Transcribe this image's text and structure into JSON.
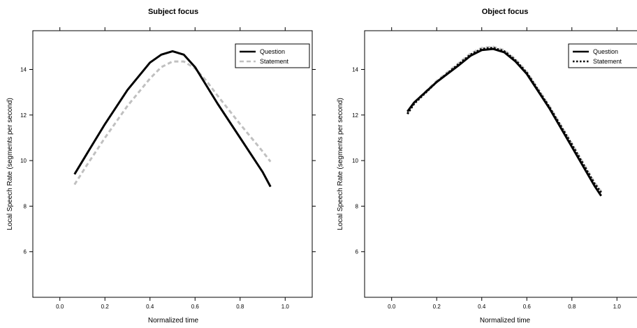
{
  "chart_data": [
    {
      "type": "line",
      "title": "Subject focus",
      "xlabel": "Normalized time",
      "ylabel": "Local Speech Rate (segments per second)",
      "xlim": [
        -0.12,
        1.12
      ],
      "ylim": [
        4.0,
        15.7
      ],
      "xticks": [
        0.0,
        0.2,
        0.4,
        0.6,
        0.8,
        1.0
      ],
      "xtick_labels": [
        "0.0",
        "0.2",
        "0.4",
        "0.6",
        "0.8",
        "1.0"
      ],
      "yticks": [
        6,
        8,
        10,
        12,
        14
      ],
      "ytick_labels": [
        "6",
        "8",
        "10",
        "12",
        "14"
      ],
      "legend_position": "top-right",
      "series": [
        {
          "name": "Question",
          "color": "#000000",
          "dash": "solid",
          "x": [
            0.065,
            0.12,
            0.2,
            0.3,
            0.4,
            0.45,
            0.5,
            0.55,
            0.6,
            0.65,
            0.7,
            0.8,
            0.9,
            0.935
          ],
          "y": [
            9.4,
            10.3,
            11.6,
            13.1,
            14.3,
            14.65,
            14.8,
            14.65,
            14.1,
            13.3,
            12.5,
            11.0,
            9.5,
            8.85
          ]
        },
        {
          "name": "Statement",
          "color": "#c0c0c0",
          "dash": "dashed",
          "x": [
            0.065,
            0.12,
            0.2,
            0.3,
            0.4,
            0.45,
            0.5,
            0.55,
            0.6,
            0.65,
            0.7,
            0.8,
            0.9,
            0.935
          ],
          "y": [
            8.95,
            9.8,
            11.0,
            12.4,
            13.6,
            14.1,
            14.35,
            14.35,
            14.05,
            13.5,
            12.85,
            11.6,
            10.4,
            9.95
          ]
        }
      ]
    },
    {
      "type": "line",
      "title": "Object focus",
      "xlabel": "Normalized time",
      "ylabel": "Local Speech Rate (segments per second)",
      "xlim": [
        -0.12,
        1.12
      ],
      "ylim": [
        4.0,
        15.7
      ],
      "xticks": [
        0.0,
        0.2,
        0.4,
        0.6,
        0.8,
        1.0
      ],
      "xtick_labels": [
        "0.0",
        "0.2",
        "0.4",
        "0.6",
        "0.8",
        "1.0"
      ],
      "yticks": [
        6,
        8,
        10,
        12,
        14
      ],
      "ytick_labels": [
        "6",
        "8",
        "10",
        "12",
        "14"
      ],
      "legend_position": "top-right",
      "series": [
        {
          "name": "Question",
          "color": "#000000",
          "dash": "solid",
          "x": [
            0.07,
            0.1,
            0.2,
            0.3,
            0.35,
            0.4,
            0.45,
            0.5,
            0.55,
            0.6,
            0.7,
            0.8,
            0.9,
            0.93
          ],
          "y": [
            12.15,
            12.55,
            13.45,
            14.2,
            14.6,
            14.85,
            14.9,
            14.75,
            14.35,
            13.8,
            12.3,
            10.6,
            8.9,
            8.45
          ]
        },
        {
          "name": "Statement",
          "color": "#000000",
          "dash": "dotted",
          "x": [
            0.07,
            0.1,
            0.2,
            0.3,
            0.35,
            0.4,
            0.45,
            0.5,
            0.55,
            0.6,
            0.7,
            0.8,
            0.9,
            0.93
          ],
          "y": [
            12.05,
            12.5,
            13.45,
            14.25,
            14.65,
            14.9,
            14.95,
            14.8,
            14.4,
            13.85,
            12.35,
            10.7,
            9.0,
            8.6
          ]
        },
        {
          "name": "",
          "color": "#c8c8c8",
          "dash": "dashed",
          "x": [
            0.07,
            0.1,
            0.2,
            0.3,
            0.35,
            0.4,
            0.45,
            0.5,
            0.55,
            0.6,
            0.7,
            0.8,
            0.9,
            0.93
          ],
          "y": [
            12.05,
            12.55,
            13.5,
            14.3,
            14.7,
            14.95,
            15.0,
            14.85,
            14.45,
            13.9,
            12.4,
            10.75,
            9.05,
            8.65
          ]
        }
      ]
    }
  ]
}
